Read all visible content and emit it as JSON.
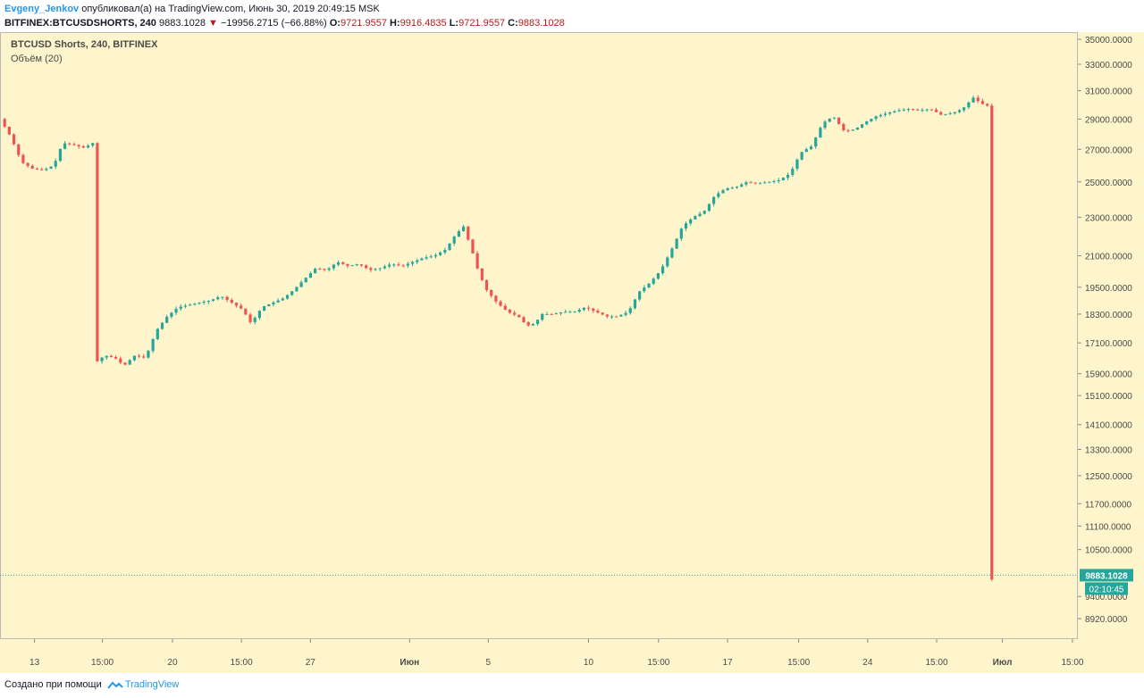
{
  "header": {
    "author": "Evgeny_Jenkov",
    "published_text": "опубликовал(а) на TradingView.com, Июнь 30, 2019 20:49:15 MSK",
    "symbol": "BITFINEX:BTCUSDSHORTS, 240",
    "last_price": "9883.1028",
    "change_arrow": "▼",
    "change": "−19956.2715 (−66.88%)",
    "open_label": "O:",
    "open": "9721.9557",
    "high_label": "H:",
    "high": "9916.4835",
    "low_label": "L:",
    "low": "9721.9557",
    "close_label": "C:",
    "close": "9883.1028"
  },
  "chart_info": {
    "title": "BTCUSD Shorts, 240, BITFINEX",
    "indicator": "Объём (20)",
    "price_label": "9883.1028",
    "timer_label": "02:10:45"
  },
  "footer": {
    "created_with": "Создано при помощи",
    "brand": "TradingView"
  },
  "colors": {
    "background": "#fff5cc",
    "up": "#26a69a",
    "down": "#ef5350",
    "price_line": "#26a69a",
    "axis_text": "#4a4a4a"
  },
  "chart_data": {
    "type": "candlestick",
    "title": "BTCUSD Shorts, 240, BITFINEX",
    "y_scale": "log",
    "ylim": [
      8500,
      35600
    ],
    "y_ticks": [
      35000,
      33000,
      31000,
      29000,
      27000,
      25000,
      23000,
      21000,
      19500,
      18300,
      17100,
      15900,
      15100,
      14100,
      13300,
      12500,
      11700,
      11100,
      10500,
      9400,
      8920
    ],
    "y_tick_labels": [
      "35000.0000",
      "33000.0000",
      "31000.0000",
      "29000.0000",
      "27000.0000",
      "25000.0000",
      "23000.0000",
      "21000.0000",
      "19500.0000",
      "18300.0000",
      "17100.0000",
      "15900.0000",
      "15100.0000",
      "14100.0000",
      "13300.0000",
      "12500.0000",
      "11700.0000",
      "11100.0000",
      "10500.0000",
      "9400.0000",
      "8920.0000"
    ],
    "x_tick_labels": [
      "13",
      "15:00",
      "20",
      "15:00",
      "27",
      "Июн",
      "5",
      "10",
      "15:00",
      "17",
      "15:00",
      "24",
      "15:00",
      "Июл",
      "15:00"
    ],
    "x_tick_bold": [
      false,
      false,
      false,
      false,
      false,
      true,
      false,
      false,
      false,
      false,
      false,
      false,
      false,
      true,
      false
    ],
    "x_range": [
      0,
      1
    ],
    "x_tick_positions": [
      0.032,
      0.095,
      0.16,
      0.224,
      0.288,
      0.38,
      0.453,
      0.546,
      0.611,
      0.675,
      0.741,
      0.805,
      0.869,
      0.93,
      0.995
    ],
    "last_price": 9883.1028,
    "path": [
      [
        0.0,
        29000
      ],
      [
        0.01,
        27800
      ],
      [
        0.02,
        26200
      ],
      [
        0.03,
        25800
      ],
      [
        0.04,
        25700
      ],
      [
        0.05,
        26000
      ],
      [
        0.058,
        27400
      ],
      [
        0.068,
        27300
      ],
      [
        0.078,
        27100
      ],
      [
        0.086,
        27400
      ],
      [
        0.088,
        16300
      ],
      [
        0.097,
        16600
      ],
      [
        0.107,
        16500
      ],
      [
        0.115,
        16200
      ],
      [
        0.125,
        16600
      ],
      [
        0.135,
        16500
      ],
      [
        0.145,
        17600
      ],
      [
        0.155,
        18200
      ],
      [
        0.165,
        18600
      ],
      [
        0.175,
        18700
      ],
      [
        0.185,
        18800
      ],
      [
        0.195,
        18900
      ],
      [
        0.205,
        19100
      ],
      [
        0.215,
        18800
      ],
      [
        0.225,
        18500
      ],
      [
        0.233,
        17900
      ],
      [
        0.243,
        18600
      ],
      [
        0.253,
        18800
      ],
      [
        0.263,
        19000
      ],
      [
        0.273,
        19400
      ],
      [
        0.283,
        19900
      ],
      [
        0.293,
        20400
      ],
      [
        0.303,
        20300
      ],
      [
        0.313,
        20700
      ],
      [
        0.323,
        20500
      ],
      [
        0.333,
        20600
      ],
      [
        0.343,
        20300
      ],
      [
        0.353,
        20400
      ],
      [
        0.363,
        20600
      ],
      [
        0.373,
        20500
      ],
      [
        0.383,
        20700
      ],
      [
        0.393,
        20900
      ],
      [
        0.403,
        21000
      ],
      [
        0.413,
        21300
      ],
      [
        0.423,
        22100
      ],
      [
        0.43,
        22500
      ],
      [
        0.437,
        21400
      ],
      [
        0.444,
        20200
      ],
      [
        0.451,
        19400
      ],
      [
        0.461,
        18800
      ],
      [
        0.471,
        18400
      ],
      [
        0.481,
        18200
      ],
      [
        0.489,
        17800
      ],
      [
        0.496,
        17900
      ],
      [
        0.503,
        18300
      ],
      [
        0.513,
        18300
      ],
      [
        0.523,
        18400
      ],
      [
        0.533,
        18400
      ],
      [
        0.543,
        18600
      ],
      [
        0.553,
        18400
      ],
      [
        0.563,
        18200
      ],
      [
        0.573,
        18200
      ],
      [
        0.583,
        18400
      ],
      [
        0.593,
        19300
      ],
      [
        0.603,
        19700
      ],
      [
        0.613,
        20300
      ],
      [
        0.623,
        21300
      ],
      [
        0.633,
        22500
      ],
      [
        0.643,
        23000
      ],
      [
        0.653,
        23300
      ],
      [
        0.663,
        24200
      ],
      [
        0.673,
        24600
      ],
      [
        0.683,
        24700
      ],
      [
        0.693,
        25000
      ],
      [
        0.703,
        24900
      ],
      [
        0.713,
        25000
      ],
      [
        0.723,
        25100
      ],
      [
        0.733,
        25500
      ],
      [
        0.743,
        26800
      ],
      [
        0.753,
        27200
      ],
      [
        0.763,
        28700
      ],
      [
        0.773,
        29200
      ],
      [
        0.783,
        28200
      ],
      [
        0.793,
        28300
      ],
      [
        0.803,
        28800
      ],
      [
        0.813,
        29200
      ],
      [
        0.823,
        29400
      ],
      [
        0.833,
        29600
      ],
      [
        0.843,
        29700
      ],
      [
        0.853,
        29600
      ],
      [
        0.863,
        29700
      ],
      [
        0.873,
        29300
      ],
      [
        0.883,
        29400
      ],
      [
        0.893,
        29700
      ],
      [
        0.903,
        30500
      ],
      [
        0.91,
        30100
      ],
      [
        0.917,
        29900
      ],
      [
        0.919,
        9720
      ],
      [
        0.922,
        9883
      ]
    ]
  }
}
